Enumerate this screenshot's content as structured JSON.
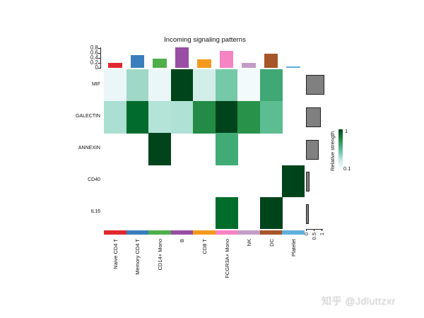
{
  "chart_data": {
    "type": "heatmap",
    "title": "Incoming signaling patterns",
    "xlabel": "",
    "ylabel": "",
    "columns": [
      "Naive CD4 T",
      "Memory CD4 T",
      "CD14+ Mono",
      "B",
      "CD8 T",
      "FCGR3A+ Mono",
      "NK",
      "DC",
      "Platelet"
    ],
    "column_colors": [
      "#e0282d",
      "#3a7ebd",
      "#4dae4a",
      "#984ea3",
      "#f39a1e",
      "#f683c2",
      "#c39dc8",
      "#a65628",
      "#5fb0dc"
    ],
    "rows": [
      "MIF",
      "GALECTIN",
      "ANNEXIN",
      "CD40",
      "IL16"
    ],
    "values": [
      [
        0.12,
        0.45,
        0.12,
        1.0,
        0.2,
        0.55,
        0.1,
        0.7,
        0.0
      ],
      [
        0.42,
        0.9,
        0.4,
        0.41,
        0.8,
        1.0,
        0.78,
        0.6,
        0.0
      ],
      [
        0.0,
        0.0,
        1.0,
        0.0,
        0.0,
        0.68,
        0.0,
        0.0,
        0.0
      ],
      [
        0.0,
        0.0,
        0.0,
        0.0,
        0.0,
        0.0,
        0.0,
        0.0,
        1.0
      ],
      [
        0.0,
        0.0,
        0.0,
        0.0,
        0.0,
        0.9,
        0.0,
        1.0,
        0.0
      ]
    ],
    "cell_colors": [
      [
        "#ebf6f8",
        "#9fd8c6",
        "#ebf6f8",
        "#00441b",
        "#d3eee8",
        "#75c8a8",
        "#f3fafb",
        "#3fa875",
        "#ffffff"
      ],
      [
        "#aadfd2",
        "#006b2d",
        "#b4e3d8",
        "#b0e1d5",
        "#238b45",
        "#00441b",
        "#29924a",
        "#5cbc92",
        "#ffffff"
      ],
      [
        "#ffffff",
        "#ffffff",
        "#00441b",
        "#ffffff",
        "#ffffff",
        "#41ab76",
        "#ffffff",
        "#ffffff",
        "#ffffff"
      ],
      [
        "#ffffff",
        "#ffffff",
        "#ffffff",
        "#ffffff",
        "#ffffff",
        "#ffffff",
        "#ffffff",
        "#ffffff",
        "#00441b"
      ],
      [
        "#ffffff",
        "#ffffff",
        "#ffffff",
        "#ffffff",
        "#ffffff",
        "#006d2c",
        "#ffffff",
        "#00441b",
        "#ffffff"
      ]
    ],
    "top_bars": {
      "values": [
        0.2,
        0.52,
        0.37,
        0.82,
        0.35,
        0.69,
        0.2,
        0.57,
        0.05
      ],
      "yticks": [
        "0",
        "0.2",
        "0.4",
        "0.6",
        "0.8"
      ],
      "ylim": [
        0,
        0.8
      ]
    },
    "side_bars": {
      "values": [
        1.2,
        0.95,
        0.8,
        0.22,
        0.18
      ],
      "xticks": [
        "0",
        "0.5",
        "1"
      ],
      "xlim": [
        0,
        1
      ]
    },
    "legend": {
      "title": "Relative strength",
      "max_label": "1",
      "min_label": "0.1",
      "colormap": [
        "#f7fcfd",
        "#00441b"
      ]
    }
  },
  "watermark": "知乎 @Jdluttzxr"
}
